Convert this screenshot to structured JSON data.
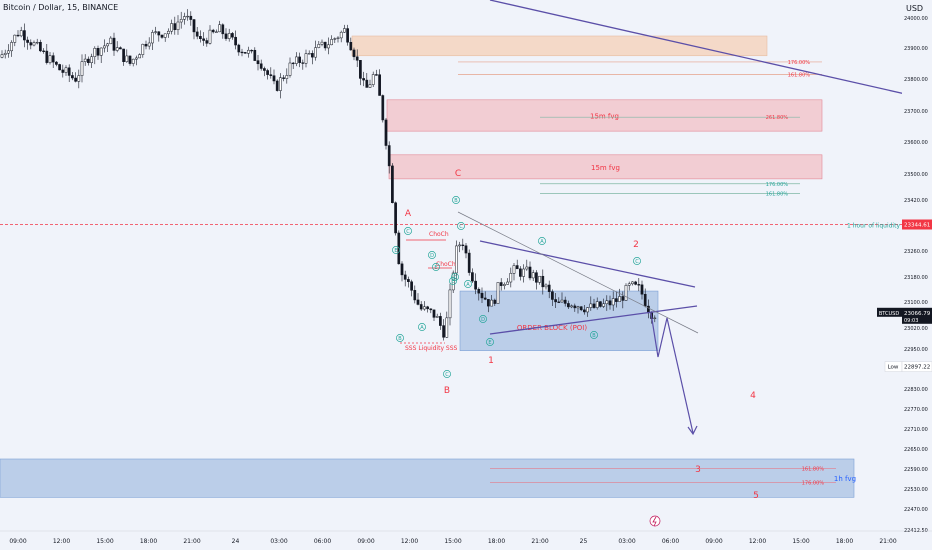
{
  "header": {
    "symbol": "Bitcoin / Dollar, 15, BINANCE",
    "currency": "USD"
  },
  "chart_data": {
    "type": "candlestick",
    "ylim": [
      22412.5,
      24050
    ],
    "y_ticks": [
      24000,
      23900,
      23800,
      23700,
      23600,
      23500,
      23420,
      23340,
      23260,
      23180,
      23100,
      23020,
      22950,
      22890,
      22830,
      22770,
      22710,
      22650,
      22590,
      22530,
      22470,
      22412.5
    ],
    "y_tick_labels": [
      "24000.00",
      "23900.00",
      "23800.00",
      "23700.00",
      "23600.00",
      "23500.00",
      "23420.00",
      "23340.00",
      "23260.00",
      "23180.00",
      "23100.00",
      "23020.00",
      "22950.00",
      "22890.00",
      "22830.00",
      "22770.00",
      "22710.00",
      "22650.00",
      "22590.00",
      "22530.00",
      "22470.00",
      "22412.50"
    ],
    "x_ticks": [
      "09:00",
      "12:00",
      "15:00",
      "18:00",
      "21:00",
      "24",
      "03:00",
      "06:00",
      "09:00",
      "12:00",
      "15:00",
      "18:00",
      "21:00",
      "25",
      "03:00",
      "06:00",
      "09:00",
      "12:00",
      "15:00",
      "18:00",
      "21:00"
    ],
    "price_marks": [
      {
        "label": "BTCUSD",
        "value": "23066.79",
        "sub": "09:03",
        "y": 23066.79,
        "color": "#131722"
      },
      {
        "label": "",
        "value": "23344.61",
        "sub": "",
        "y": 23344.61,
        "color": "#f23645"
      },
      {
        "label": "Low",
        "value": "22897.22",
        "sub": "",
        "y": 22897.22,
        "color": "#ffffff"
      }
    ],
    "zones": [
      {
        "label": "",
        "y1": 23940,
        "y2": 23875,
        "color": "#f5d7c3"
      },
      {
        "label": "15m fvg",
        "y1": 23735,
        "y2": 23635,
        "color": "#f3c9cf"
      },
      {
        "label": "15m fvg",
        "y1": 23560,
        "y2": 23485,
        "color": "#f3c9cf"
      },
      {
        "label": "ORDER BLOCK (POI)",
        "y1": 23135,
        "y2": 22945,
        "color": "#b6cbe8"
      },
      {
        "label": "1h fvg",
        "y1": 22620,
        "y2": 22505,
        "color": "#b6cbe8"
      }
    ],
    "fib_levels": [
      {
        "label": "176.00%",
        "y": 23855
      },
      {
        "label": "161.80%",
        "y": 23815
      },
      {
        "label": "261.80%",
        "y": 23680
      },
      {
        "label": "176.00%",
        "y": 23470
      },
      {
        "label": "161.80%",
        "y": 23440
      },
      {
        "label": "161.80%",
        "y": 22592
      },
      {
        "label": "176.00%",
        "y": 22550
      }
    ],
    "liquidity_line": {
      "label": "1 hour of liquidity",
      "y": 23344.61
    },
    "ssl_label": "SSS Liquidity SSS",
    "choch_labels": [
      "ChoCh",
      "ChoCh"
    ],
    "wave_labels": [
      "A",
      "B",
      "C",
      "1",
      "2",
      "3",
      "4",
      "5"
    ],
    "sub_wave_labels": [
      "B",
      "A",
      "C",
      "D",
      "E",
      "E",
      "B",
      "D",
      "C",
      "E",
      "A",
      "C",
      "E",
      "D",
      "B",
      "A",
      "C"
    ]
  }
}
